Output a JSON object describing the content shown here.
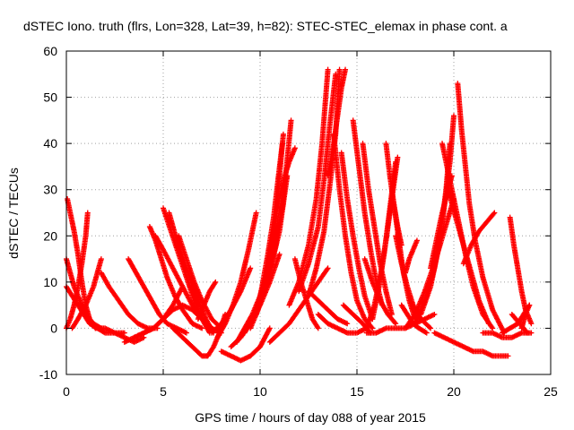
{
  "chart_data": {
    "type": "scatter",
    "title": "dSTEC Iono. truth (flrs, Lon=328, Lat=39, h=82): STEC-STEC_elemax in phase cont. a",
    "xlabel": "GPS time / hours of day 088 of year 2015",
    "ylabel": "dSTEC  / TECUs",
    "xlim": [
      0,
      25
    ],
    "ylim": [
      -10,
      60
    ],
    "xticks": [
      "0",
      "5",
      "10",
      "15",
      "20",
      "25"
    ],
    "yticks": [
      "-10",
      "0",
      "10",
      "20",
      "30",
      "40",
      "50",
      "60"
    ],
    "grid": true,
    "marker": "+",
    "color": "#ff0000",
    "series": [
      {
        "x": [
          0.0,
          0.3,
          0.6,
          0.9,
          1.2,
          1.6,
          2.0,
          2.5,
          3.0
        ],
        "y": [
          9,
          7,
          5,
          3,
          1,
          0,
          -1,
          -1,
          -1
        ]
      },
      {
        "x": [
          0.05,
          0.2,
          0.4,
          0.6,
          0.8,
          1.0,
          1.2,
          1.5
        ],
        "y": [
          28,
          25,
          21,
          16,
          10,
          5,
          2,
          0
        ]
      },
      {
        "x": [
          0.0,
          0.2,
          0.4,
          0.7,
          1.0,
          1.4,
          1.8
        ],
        "y": [
          15,
          12,
          9,
          6,
          3,
          1,
          0
        ]
      },
      {
        "x": [
          0.0,
          0.2,
          0.4,
          0.6,
          0.8,
          1.0,
          1.1
        ],
        "y": [
          0,
          2,
          5,
          9,
          14,
          20,
          25
        ]
      },
      {
        "x": [
          0.3,
          0.6,
          1.0,
          1.4,
          1.8
        ],
        "y": [
          0,
          2,
          5,
          9,
          15
        ]
      },
      {
        "x": [
          1.8,
          2.2,
          2.7,
          3.2,
          3.7,
          4.2,
          4.7
        ],
        "y": [
          12,
          9,
          6,
          3,
          1,
          0,
          0
        ]
      },
      {
        "x": [
          3.2,
          3.6,
          4.0,
          4.4,
          4.8,
          5.2,
          5.7,
          6.2
        ],
        "y": [
          15,
          12,
          9,
          6,
          3,
          1,
          0,
          -1
        ]
      },
      {
        "x": [
          1.5,
          2.0,
          2.5,
          3.0,
          3.5,
          4.0
        ],
        "y": [
          0,
          0,
          -1,
          -2,
          -3,
          -2
        ]
      },
      {
        "x": [
          3.0,
          3.5,
          4.0,
          4.5,
          5.0,
          5.5,
          6.0
        ],
        "y": [
          -3,
          -2,
          -1,
          0,
          2,
          5,
          9
        ]
      },
      {
        "x": [
          4.3,
          4.6,
          4.9,
          5.2,
          5.6,
          6.0,
          6.5,
          7.0
        ],
        "y": [
          22,
          19,
          15,
          11,
          7,
          4,
          1,
          0
        ]
      },
      {
        "x": [
          4.6,
          5.0,
          5.5,
          6.0,
          6.5,
          7.0,
          7.5,
          8.0
        ],
        "y": [
          20,
          17,
          13,
          9,
          5,
          2,
          0,
          -1
        ]
      },
      {
        "x": [
          5.0,
          5.4,
          5.8,
          6.2,
          6.6,
          7.0,
          7.4
        ],
        "y": [
          26,
          21,
          16,
          11,
          6,
          2,
          -1
        ]
      },
      {
        "x": [
          5.3,
          5.7,
          6.2,
          6.7,
          7.2,
          7.6
        ],
        "y": [
          25,
          19,
          13,
          7,
          2,
          -1
        ]
      },
      {
        "x": [
          5.8,
          6.2,
          6.6,
          7.0,
          7.5,
          8.0
        ],
        "y": [
          20,
          15,
          10,
          6,
          2,
          0
        ]
      },
      {
        "x": [
          3.5,
          4.0,
          4.5,
          5.0,
          5.5,
          6.0,
          6.5,
          7.0,
          7.5
        ],
        "y": [
          -2,
          -1,
          0,
          2,
          4,
          5,
          4,
          2,
          0
        ]
      },
      {
        "x": [
          5.5,
          6.0,
          6.5,
          7.0,
          7.3,
          7.6,
          7.9,
          8.2
        ],
        "y": [
          0,
          -2,
          -4,
          -6,
          -6,
          -4,
          -1,
          3
        ]
      },
      {
        "x": [
          6.8,
          7.1,
          7.4,
          7.7
        ],
        "y": [
          2,
          5,
          8,
          10
        ]
      },
      {
        "x": [
          7.5,
          8.0,
          8.5,
          9.0,
          9.5
        ],
        "y": [
          -1,
          1,
          4,
          8,
          13
        ]
      },
      {
        "x": [
          7.8,
          8.2,
          8.6,
          9.0,
          9.4,
          9.8
        ],
        "y": [
          -2,
          1,
          5,
          10,
          17,
          25
        ]
      },
      {
        "x": [
          8.0,
          8.5,
          9.0,
          9.5,
          10.0,
          10.5
        ],
        "y": [
          -5,
          -6,
          -7,
          -6,
          -4,
          0
        ]
      },
      {
        "x": [
          8.5,
          9.0,
          9.5,
          10.0,
          10.5,
          11.0
        ],
        "y": [
          -4,
          -2,
          1,
          5,
          10,
          16
        ]
      },
      {
        "x": [
          8.8,
          9.2,
          9.6,
          10.0,
          10.4,
          10.8,
          11.2
        ],
        "y": [
          -3,
          0,
          3,
          7,
          12,
          19,
          27
        ]
      },
      {
        "x": [
          9.0,
          9.4,
          9.8,
          10.2,
          10.6,
          11.0,
          11.4
        ],
        "y": [
          -2,
          1,
          4,
          8,
          14,
          21,
          33
        ]
      },
      {
        "x": [
          9.2,
          9.6,
          10.0,
          10.4,
          10.8,
          11.2,
          11.6
        ],
        "y": [
          -1,
          2,
          6,
          11,
          18,
          28,
          45
        ]
      },
      {
        "x": [
          9.5,
          9.9,
          10.2,
          10.5,
          10.8,
          11.0,
          11.2
        ],
        "y": [
          0,
          4,
          9,
          15,
          23,
          33,
          42
        ]
      },
      {
        "x": [
          9.8,
          10.1,
          10.4,
          10.7,
          10.95,
          11.15
        ],
        "y": [
          3,
          9,
          16,
          24,
          33,
          40
        ]
      },
      {
        "x": [
          10.0,
          10.3,
          10.6,
          10.9,
          11.2,
          11.5,
          11.8
        ],
        "y": [
          6,
          12,
          19,
          26,
          32,
          36,
          39
        ]
      },
      {
        "x": [
          10.5,
          11.0,
          11.5,
          12.0,
          12.5,
          13.0,
          13.5
        ],
        "y": [
          -3,
          -1,
          1,
          4,
          7,
          10,
          13
        ]
      },
      {
        "x": [
          11.8,
          12.1,
          12.4,
          12.7,
          13.0
        ],
        "y": [
          15,
          10,
          6,
          2,
          0
        ]
      },
      {
        "x": [
          11.5,
          12.0,
          12.5,
          12.9,
          13.2,
          13.5
        ],
        "y": [
          5,
          10,
          18,
          28,
          40,
          56
        ]
      },
      {
        "x": [
          12.0,
          12.5,
          13.0,
          13.3,
          13.6,
          13.9
        ],
        "y": [
          8,
          14,
          22,
          32,
          44,
          55
        ]
      },
      {
        "x": [
          12.5,
          12.9,
          13.3,
          13.6,
          13.9,
          14.1
        ],
        "y": [
          7,
          13,
          21,
          31,
          42,
          56
        ]
      },
      {
        "x": [
          13.5,
          13.8,
          14.0,
          14.2,
          14.4
        ],
        "y": [
          33,
          40,
          46,
          52,
          56
        ]
      },
      {
        "x": [
          13.8,
          14.1,
          14.4,
          14.7,
          15.0,
          15.4,
          15.8
        ],
        "y": [
          42,
          30,
          20,
          12,
          6,
          2,
          0
        ]
      },
      {
        "x": [
          14.2,
          14.5,
          14.8,
          15.1,
          15.4,
          15.8
        ],
        "y": [
          38,
          28,
          20,
          13,
          7,
          2
        ]
      },
      {
        "x": [
          12.5,
          13.0,
          13.5,
          14.0,
          14.5
        ],
        "y": [
          8,
          6,
          4,
          2,
          1
        ]
      },
      {
        "x": [
          13.0,
          13.5,
          14.0,
          14.5,
          15.0,
          15.5
        ],
        "y": [
          3,
          1,
          0,
          -1,
          -1,
          0
        ]
      },
      {
        "x": [
          14.3,
          14.8,
          15.3,
          15.7
        ],
        "y": [
          5,
          3,
          1,
          -1
        ]
      },
      {
        "x": [
          14.8,
          15.1,
          15.4,
          15.7,
          16.0,
          16.3
        ],
        "y": [
          45,
          35,
          25,
          17,
          10,
          5
        ]
      },
      {
        "x": [
          15.3,
          15.6,
          15.9,
          16.2,
          16.5,
          16.8
        ],
        "y": [
          40,
          30,
          22,
          14,
          8,
          3
        ]
      },
      {
        "x": [
          15.4,
          15.8,
          16.2,
          16.6,
          17.0
        ],
        "y": [
          15,
          10,
          6,
          3,
          1
        ]
      },
      {
        "x": [
          15.5,
          15.9,
          16.2,
          16.5,
          16.8,
          17.1
        ],
        "y": [
          0,
          5,
          11,
          19,
          28,
          37
        ]
      },
      {
        "x": [
          15.8,
          16.1,
          16.4,
          16.7,
          17.0
        ],
        "y": [
          2,
          8,
          16,
          26,
          36
        ]
      },
      {
        "x": [
          16.5,
          16.7,
          16.9,
          17.1,
          17.3
        ],
        "y": [
          40,
          33,
          27,
          22,
          18
        ]
      },
      {
        "x": [
          16.8,
          17.0,
          17.2,
          17.4,
          17.7,
          18.0
        ],
        "y": [
          30,
          24,
          18,
          12,
          6,
          2
        ]
      },
      {
        "x": [
          17.0,
          17.3,
          17.6,
          17.9,
          18.3,
          18.8
        ],
        "y": [
          20,
          14,
          9,
          5,
          2,
          0
        ]
      },
      {
        "x": [
          17.3,
          17.6,
          17.9,
          18.2,
          18.6
        ],
        "y": [
          5,
          3,
          1,
          0,
          -1
        ]
      },
      {
        "x": [
          17.5,
          17.7,
          17.9,
          18.1
        ],
        "y": [
          12,
          15,
          17,
          19
        ]
      },
      {
        "x": [
          15.5,
          16.0,
          16.5,
          17.0,
          17.5,
          18.0,
          18.5,
          19.0
        ],
        "y": [
          -1,
          -1,
          0,
          0,
          0,
          1,
          2,
          3
        ]
      },
      {
        "x": [
          17.5,
          18.0,
          18.5,
          19.0,
          19.5,
          20.0
        ],
        "y": [
          0,
          3,
          8,
          14,
          21,
          28
        ]
      },
      {
        "x": [
          18.0,
          18.5,
          19.0,
          19.3,
          19.6,
          19.8
        ],
        "y": [
          1,
          6,
          13,
          20,
          30,
          40
        ]
      },
      {
        "x": [
          18.3,
          18.8,
          19.2,
          19.5,
          19.8,
          20.0
        ],
        "y": [
          3,
          9,
          17,
          26,
          36,
          46
        ]
      },
      {
        "x": [
          18.8,
          19.1,
          19.4,
          19.7,
          19.9
        ],
        "y": [
          13,
          19,
          25,
          30,
          33
        ]
      },
      {
        "x": [
          19.4,
          19.8,
          20.2,
          20.6,
          21.0,
          21.5,
          22.0
        ],
        "y": [
          40,
          32,
          24,
          16,
          9,
          3,
          0
        ]
      },
      {
        "x": [
          19.7,
          20.1,
          20.5,
          20.9,
          21.3,
          21.8
        ],
        "y": [
          30,
          24,
          18,
          12,
          6,
          1
        ]
      },
      {
        "x": [
          20.2,
          20.4,
          20.6,
          20.8,
          21.1,
          21.5,
          22.0,
          22.6
        ],
        "y": [
          53,
          43,
          35,
          27,
          19,
          11,
          4,
          -1
        ]
      },
      {
        "x": [
          19.0,
          19.5,
          20.0,
          20.5,
          21.0,
          21.5,
          22.0,
          22.8
        ],
        "y": [
          -1,
          -2,
          -3,
          -4,
          -5,
          -5,
          -6,
          -6
        ]
      },
      {
        "x": [
          20.5,
          20.9,
          21.3,
          21.7,
          22.1
        ],
        "y": [
          14,
          18,
          21,
          23,
          25
        ]
      },
      {
        "x": [
          21.5,
          22.0,
          22.5,
          23.0,
          23.5,
          24.0
        ],
        "y": [
          -1,
          -1,
          -2,
          -2,
          -1,
          -1
        ]
      },
      {
        "x": [
          22.9,
          23.1,
          23.3,
          23.5,
          23.7,
          24.0
        ],
        "y": [
          24,
          18,
          13,
          8,
          4,
          1
        ]
      },
      {
        "x": [
          22.5,
          22.9,
          23.3,
          23.6,
          23.9
        ],
        "y": [
          -1,
          0,
          1,
          3,
          5
        ]
      },
      {
        "x": [
          23.5,
          23.7,
          23.9
        ],
        "y": [
          0,
          3,
          5
        ]
      },
      {
        "x": [
          23.0,
          23.4,
          23.8
        ],
        "y": [
          3,
          1,
          -1
        ]
      }
    ]
  }
}
